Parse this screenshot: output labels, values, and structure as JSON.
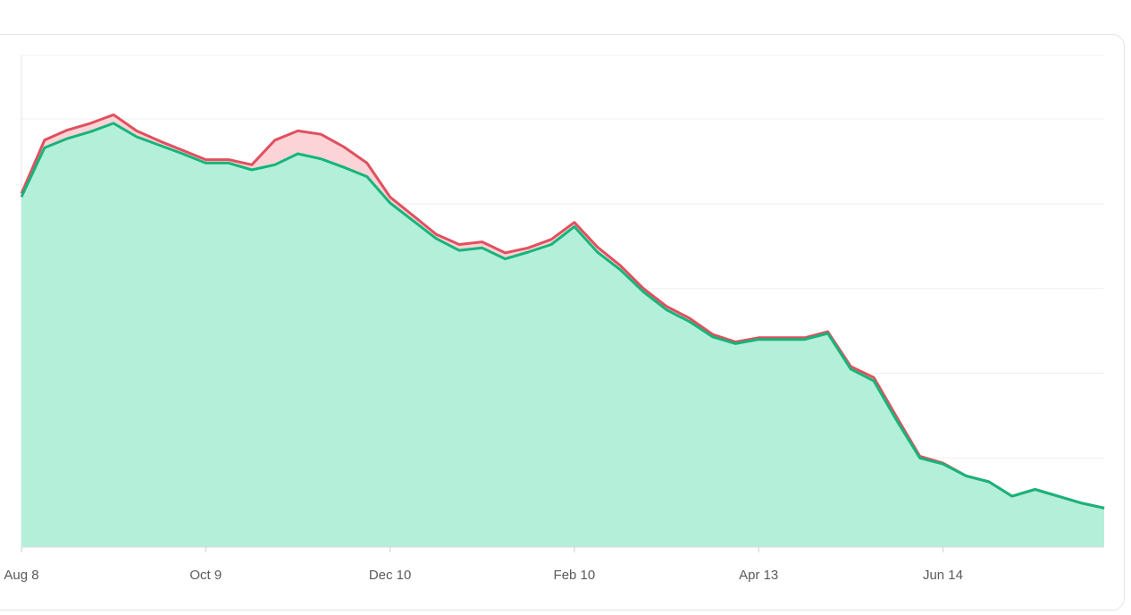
{
  "chart_data": {
    "type": "area",
    "categories": [
      "Aug 8",
      null,
      null,
      null,
      null,
      null,
      null,
      null,
      "Oct 9",
      null,
      null,
      null,
      null,
      null,
      null,
      null,
      "Dec 10",
      null,
      null,
      null,
      null,
      null,
      null,
      null,
      "Feb 10",
      null,
      null,
      null,
      null,
      null,
      null,
      null,
      "Apr 13",
      null,
      null,
      null,
      null,
      null,
      null,
      null,
      "Jun 14",
      null,
      null,
      null,
      null,
      null,
      null,
      null
    ],
    "series": [
      {
        "color": "#e0505e",
        "fill": "#fcd3d7",
        "values": [
          4.12,
          4.75,
          4.87,
          4.95,
          5.05,
          4.86,
          4.74,
          4.63,
          4.52,
          4.52,
          4.46,
          4.75,
          4.86,
          4.82,
          4.67,
          4.48,
          4.08,
          3.86,
          3.64,
          3.52,
          3.55,
          3.42,
          3.48,
          3.58,
          3.78,
          3.49,
          3.27,
          3.0,
          2.79,
          2.65,
          2.46,
          2.37,
          2.42,
          2.42,
          2.42,
          2.49,
          2.08,
          1.95,
          1.48,
          1.02,
          0.94,
          0.79,
          0.72,
          0.55,
          0.63,
          0.55,
          0.47,
          0.41
        ]
      },
      {
        "color": "#14b57b",
        "fill": "#b4efd9",
        "values": [
          4.08,
          4.66,
          4.77,
          4.85,
          4.95,
          4.79,
          4.69,
          4.59,
          4.48,
          4.48,
          4.4,
          4.46,
          4.59,
          4.53,
          4.43,
          4.32,
          4.01,
          3.8,
          3.59,
          3.45,
          3.48,
          3.35,
          3.43,
          3.52,
          3.73,
          3.43,
          3.22,
          2.96,
          2.75,
          2.61,
          2.43,
          2.35,
          2.4,
          2.4,
          2.4,
          2.47,
          2.05,
          1.91,
          1.44,
          1.0,
          0.93,
          0.79,
          0.72,
          0.55,
          0.63,
          0.55,
          0.47,
          0.41
        ]
      }
    ],
    "ylim": [
      -0.05,
      5.75
    ],
    "yticks": [
      0,
      1,
      2,
      3,
      4,
      5
    ],
    "grid": true
  }
}
